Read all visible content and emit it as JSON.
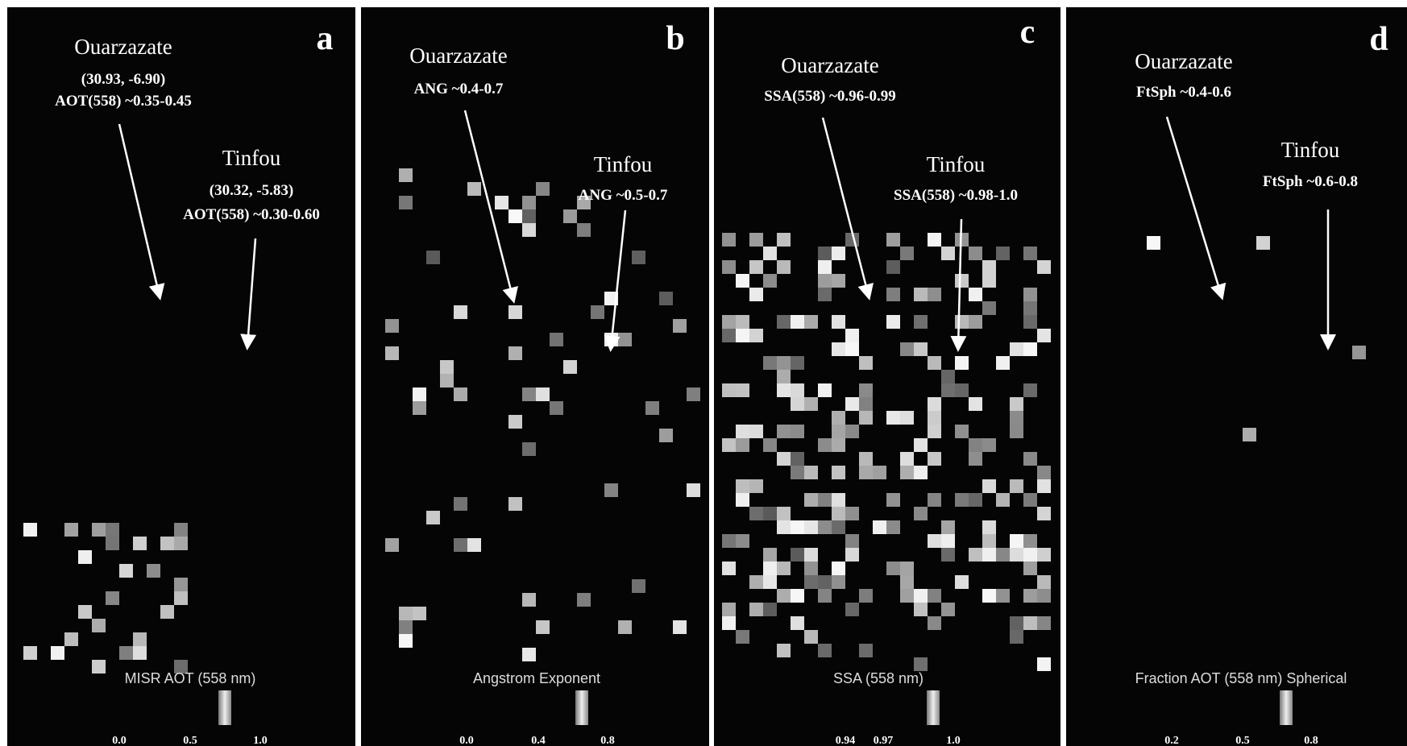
{
  "panels": [
    {
      "letter": "a",
      "annotations": [
        {
          "title": "Ouarzazate",
          "lines": [
            "(30.93, -6.90)",
            "AOT(558) ~0.35-0.45"
          ]
        },
        {
          "title": "Tinfou",
          "lines": [
            "(30.32, -5.83)",
            "AOT(558) ~0.30-0.60"
          ]
        }
      ],
      "colorbar": {
        "title": "MISR AOT (558 nm)",
        "ticks": [
          "0.0",
          "0.5",
          "1.0"
        ]
      }
    },
    {
      "letter": "b",
      "annotations": [
        {
          "title": "Ouarzazate",
          "lines": [
            "ANG ~0.4-0.7"
          ]
        },
        {
          "title": "Tinfou",
          "lines": [
            "ANG ~0.5-0.7"
          ]
        }
      ],
      "colorbar": {
        "title": "Angstrom Exponent",
        "ticks": [
          "0.0",
          "0.4",
          "0.8"
        ]
      }
    },
    {
      "letter": "c",
      "annotations": [
        {
          "title": "Ouarzazate",
          "lines": [
            "SSA(558) ~0.96-0.99"
          ]
        },
        {
          "title": "Tinfou",
          "lines": [
            "SSA(558) ~0.98-1.0"
          ]
        }
      ],
      "colorbar": {
        "title": "SSA (558 nm)",
        "ticks": [
          "0.94",
          "0.97",
          "1.0"
        ]
      }
    },
    {
      "letter": "d",
      "annotations": [
        {
          "title": "Ouarzazate",
          "lines": [
            "FtSph ~0.4-0.6"
          ]
        },
        {
          "title": "Tinfou",
          "lines": [
            "FtSph ~0.6-0.8"
          ]
        }
      ],
      "colorbar": {
        "title": "Fraction AOT (558 nm) Spherical",
        "ticks": [
          "0.2",
          "0.5",
          "0.8"
        ]
      }
    }
  ]
}
